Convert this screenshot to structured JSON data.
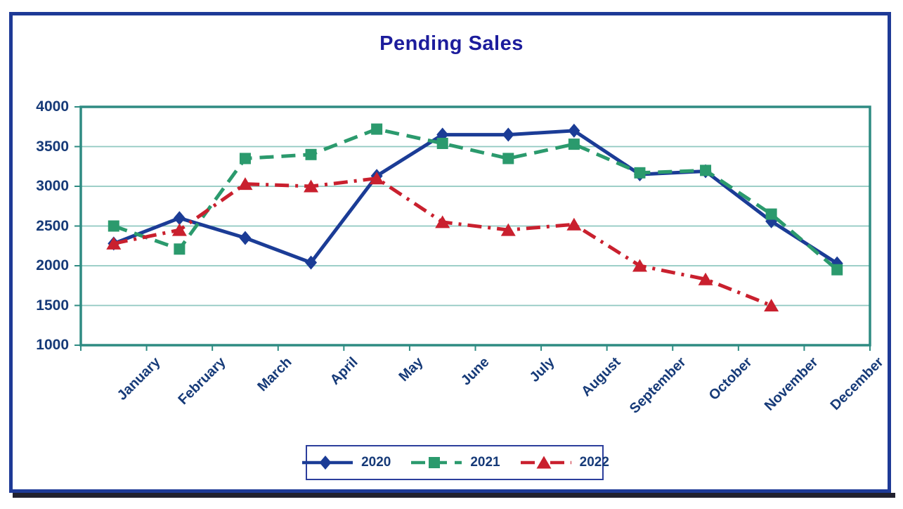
{
  "frame": {
    "border_color": "#1e3a96",
    "shadow_color": "#21212e"
  },
  "chart_data": {
    "type": "line",
    "title": "Pending Sales",
    "title_color": "#1c1c9c",
    "text_color": "#163a78",
    "axis_frame_color": "#2e8b82",
    "gridline_color": "#8fc8c0",
    "background": "#ffffff",
    "categories": [
      "January",
      "February",
      "March",
      "April",
      "May",
      "June",
      "July",
      "August",
      "September",
      "October",
      "November",
      "December"
    ],
    "series": [
      {
        "name": "2020",
        "color": "#1b3c96",
        "marker": "diamond",
        "line_style": "solid",
        "values": [
          2280,
          2600,
          2350,
          2040,
          3130,
          3650,
          3650,
          3700,
          3150,
          3190,
          2560,
          2030
        ]
      },
      {
        "name": "2021",
        "color": "#2b9a6d",
        "marker": "square",
        "line_style": "dashed",
        "values": [
          2500,
          2210,
          3350,
          3400,
          3720,
          3540,
          3350,
          3530,
          3170,
          3200,
          2650,
          1950
        ]
      },
      {
        "name": "2022",
        "color": "#c9202e",
        "marker": "triangle",
        "line_style": "dash-dot",
        "values": [
          2280,
          2450,
          3030,
          3000,
          3100,
          2550,
          2450,
          2520,
          2000,
          1830,
          1500,
          null
        ]
      }
    ],
    "ylim": [
      1000,
      4000
    ],
    "ytick_step": 500,
    "ytick_labels": [
      "1000",
      "1500",
      "2000",
      "2500",
      "3000",
      "3500",
      "4000"
    ],
    "grid": "horizontal",
    "legend_position": "bottom"
  }
}
